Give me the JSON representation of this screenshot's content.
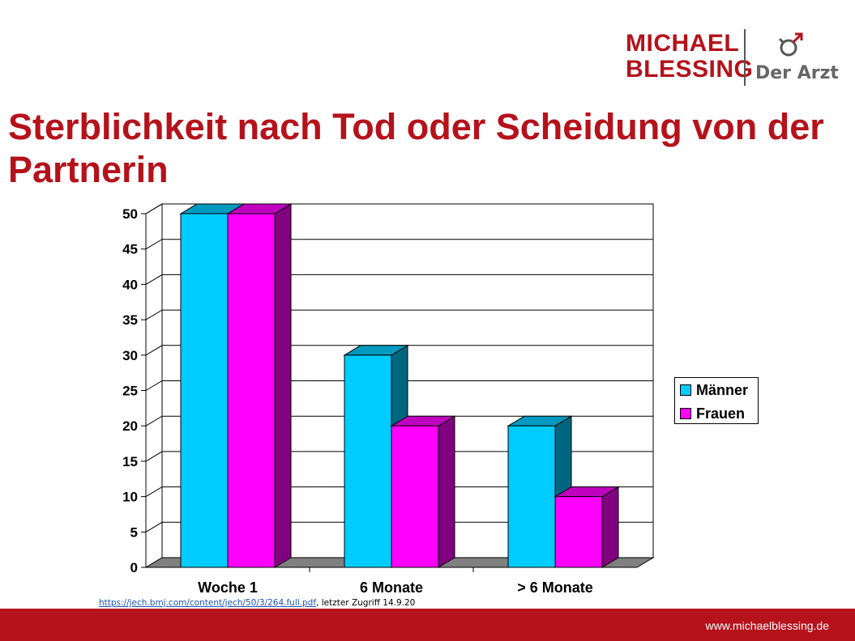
{
  "brand": {
    "name": "MICHAEL BLESSING",
    "subtitle": "Der Arzt",
    "color": "#b5121b"
  },
  "slide": {
    "title": "Sterblichkeit nach Tod oder Scheidung von der Partnerin"
  },
  "source": {
    "link_text": "https://jech.bmj.com/content/jech/50/3/264.full.pdf",
    "suffix": ", letzter Zugriff 14.9.20"
  },
  "footer": {
    "url": "www.michaelblessing.de"
  },
  "chart_data": {
    "type": "bar",
    "categories": [
      "Woche 1",
      "6 Monate",
      "> 6 Monate"
    ],
    "series": [
      {
        "name": "Männer",
        "values": [
          50,
          30,
          20
        ],
        "color": "#00ccff"
      },
      {
        "name": "Frauen",
        "values": [
          50,
          20,
          10
        ],
        "color": "#ff00ff"
      }
    ],
    "ylim": [
      0,
      50
    ],
    "yticks": [
      0,
      5,
      10,
      15,
      20,
      25,
      30,
      35,
      40,
      45,
      50
    ],
    "grid": true,
    "legend": "right",
    "style": "3d"
  }
}
